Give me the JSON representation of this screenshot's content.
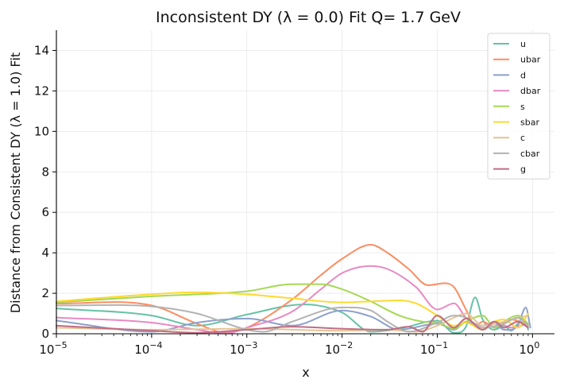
{
  "chart_data": {
    "type": "line",
    "title": "Inconsistent DY (λ = 0.0) Fit Q= 1.7 GeV",
    "xlabel": "x",
    "ylabel": "Distance from Consistent DY (λ = 1.0) Fit",
    "xscale": "log",
    "xlim": [
      1e-05,
      1.7
    ],
    "ylim": [
      0,
      15
    ],
    "grid": true,
    "legend_position": "top-right",
    "x_ticks": [
      {
        "value": 1e-05,
        "base": "10",
        "exp": "−5"
      },
      {
        "value": 0.0001,
        "base": "10",
        "exp": "−4"
      },
      {
        "value": 0.001,
        "base": "10",
        "exp": "−3"
      },
      {
        "value": 0.01,
        "base": "10",
        "exp": "−2"
      },
      {
        "value": 0.1,
        "base": "10",
        "exp": "−1"
      },
      {
        "value": 1,
        "base": "10",
        "exp": "0"
      }
    ],
    "y_ticks": [
      0,
      2,
      4,
      6,
      8,
      10,
      12,
      14
    ],
    "series": [
      {
        "name": "u",
        "color": "#66c2a5",
        "x": [
          1e-05,
          0.0001,
          0.0003,
          0.001,
          0.004,
          0.01,
          0.02,
          0.04,
          0.1,
          0.15,
          0.2,
          0.25,
          0.3,
          0.4,
          0.5,
          0.6,
          0.7,
          0.85,
          0.9
        ],
        "y": [
          1.25,
          0.9,
          0.4,
          0.95,
          1.45,
          1.05,
          0.1,
          0.25,
          0.65,
          0.05,
          0.35,
          1.8,
          0.7,
          0.2,
          0.4,
          0.15,
          0.5,
          0.6,
          0.2
        ]
      },
      {
        "name": "ubar",
        "color": "#fc8d62",
        "x": [
          1e-05,
          0.0001,
          0.0003,
          0.0006,
          0.001,
          0.003,
          0.006,
          0.01,
          0.02,
          0.03,
          0.05,
          0.08,
          0.12,
          0.15,
          0.2,
          0.25,
          0.3,
          0.4,
          0.6,
          0.9
        ],
        "y": [
          1.5,
          1.4,
          0.5,
          0.05,
          0.3,
          1.7,
          2.9,
          3.7,
          4.4,
          4.0,
          3.2,
          2.4,
          2.5,
          2.3,
          1.2,
          0.4,
          0.6,
          0.3,
          0.7,
          0.4
        ]
      },
      {
        "name": "d",
        "color": "#8da0cb",
        "x": [
          1e-05,
          0.0001,
          0.0003,
          0.001,
          0.003,
          0.01,
          0.02,
          0.04,
          0.1,
          0.15,
          0.2,
          0.3,
          0.4,
          0.5,
          0.7,
          0.85,
          0.95
        ],
        "y": [
          0.65,
          0.1,
          0.55,
          0.75,
          0.4,
          1.15,
          0.85,
          0.2,
          0.5,
          0.2,
          0.6,
          0.2,
          0.5,
          0.2,
          0.4,
          1.3,
          0.3
        ]
      },
      {
        "name": "dbar",
        "color": "#e78ac3",
        "x": [
          1e-05,
          0.0001,
          0.0003,
          0.0006,
          0.001,
          0.003,
          0.006,
          0.01,
          0.02,
          0.03,
          0.06,
          0.1,
          0.15,
          0.2,
          0.3,
          0.4,
          0.6,
          0.9
        ],
        "y": [
          0.8,
          0.55,
          0.2,
          0.02,
          0.3,
          1.1,
          2.2,
          3.0,
          3.35,
          3.2,
          2.3,
          1.2,
          1.5,
          0.8,
          0.4,
          0.6,
          0.3,
          0.5
        ]
      },
      {
        "name": "s",
        "color": "#a6d854",
        "x": [
          1e-05,
          0.0001,
          0.001,
          0.003,
          0.006,
          0.01,
          0.02,
          0.04,
          0.07,
          0.1,
          0.15,
          0.2,
          0.3,
          0.4,
          0.5,
          0.7,
          0.9
        ],
        "y": [
          1.55,
          1.85,
          2.1,
          2.45,
          2.45,
          2.2,
          1.6,
          0.9,
          0.6,
          0.55,
          0.25,
          0.6,
          0.9,
          0.3,
          0.6,
          0.9,
          0.5
        ]
      },
      {
        "name": "sbar",
        "color": "#ffd92f",
        "x": [
          1e-05,
          0.0001,
          0.0003,
          0.001,
          0.003,
          0.01,
          0.02,
          0.04,
          0.06,
          0.1,
          0.15,
          0.2,
          0.3,
          0.4,
          0.5,
          0.7,
          0.9
        ],
        "y": [
          1.6,
          1.95,
          2.05,
          1.95,
          1.75,
          1.55,
          1.6,
          1.65,
          1.5,
          0.9,
          0.4,
          0.55,
          0.2,
          0.6,
          0.7,
          0.3,
          1.0
        ]
      },
      {
        "name": "c",
        "color": "#e5c494",
        "x": [
          1e-05,
          0.0001,
          0.001,
          0.01,
          0.03,
          0.06,
          0.1,
          0.15,
          0.2,
          0.3,
          0.5,
          0.9
        ],
        "y": [
          0.3,
          0.2,
          0.25,
          0.15,
          0.2,
          0.1,
          0.4,
          0.8,
          1.0,
          0.4,
          0.6,
          0.9
        ]
      },
      {
        "name": "cbar",
        "color": "#b3b3b3",
        "x": [
          1e-05,
          0.0001,
          0.0003,
          0.001,
          0.0015,
          0.003,
          0.01,
          0.02,
          0.03,
          0.05,
          0.1,
          0.15,
          0.2,
          0.3,
          0.5,
          0.7,
          0.9
        ],
        "y": [
          1.4,
          1.35,
          1.0,
          0.2,
          0.1,
          0.6,
          1.3,
          1.15,
          0.6,
          0.1,
          0.55,
          0.9,
          0.8,
          0.3,
          0.5,
          0.8,
          0.4
        ]
      },
      {
        "name": "g",
        "color": "#c06c84",
        "x": [
          1e-05,
          0.0001,
          0.0003,
          0.001,
          0.003,
          0.01,
          0.03,
          0.05,
          0.07,
          0.1,
          0.15,
          0.2,
          0.3,
          0.4,
          0.5,
          0.7,
          0.9
        ],
        "y": [
          0.4,
          0.15,
          0.05,
          0.2,
          0.35,
          0.25,
          0.2,
          0.35,
          0.1,
          0.9,
          0.3,
          0.75,
          0.2,
          0.6,
          0.3,
          0.6,
          0.3
        ]
      }
    ]
  }
}
